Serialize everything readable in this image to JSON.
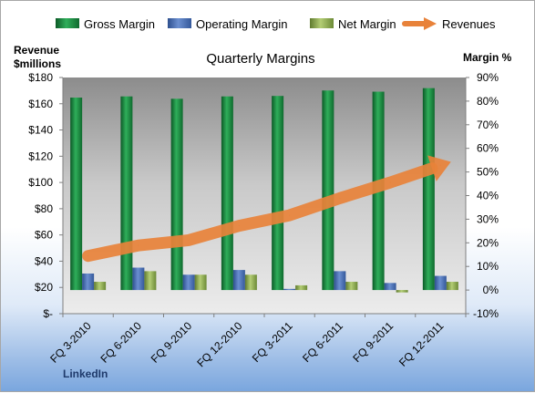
{
  "chart_data": {
    "type": "bar",
    "title": "Quarterly Margins",
    "left_axis_title": [
      "Revenue",
      "$millions"
    ],
    "right_axis_title": "Margin %",
    "watermark": "LinkedIn",
    "categories": [
      "FQ 3-2010",
      "FQ 6-2010",
      "FQ 9-2010",
      "FQ 12-2010",
      "FQ 3-2011",
      "FQ 6-2011",
      "FQ 9-2011",
      "FQ 12-2011"
    ],
    "left_ticks": [
      "$-",
      "$20",
      "$40",
      "$60",
      "$80",
      "$100",
      "$120",
      "$140",
      "$160",
      "$180"
    ],
    "right_ticks": [
      "-10%",
      "0%",
      "10%",
      "20%",
      "30%",
      "40%",
      "50%",
      "60%",
      "70%",
      "80%",
      "90%"
    ],
    "ylim_left": [
      0,
      180
    ],
    "ylim_right": [
      -10,
      90
    ],
    "legend_position": "top",
    "grid": false,
    "series": [
      {
        "name": "Gross Margin",
        "type": "bar",
        "axis": "right",
        "color": "#1e8a45",
        "values": [
          81.5,
          82,
          81,
          82,
          82.2,
          84.5,
          84,
          85.5
        ]
      },
      {
        "name": "Operating Margin",
        "type": "bar",
        "axis": "right",
        "color": "#4a6fb5",
        "values": [
          7,
          9.5,
          6.5,
          8.5,
          0.5,
          8,
          3,
          6
        ]
      },
      {
        "name": "Net Margin",
        "type": "bar",
        "axis": "right",
        "color": "#8fae4e",
        "values": [
          3.5,
          8,
          6.5,
          6.5,
          2,
          3.5,
          -1,
          3.5
        ]
      },
      {
        "name": "Revenues",
        "type": "line",
        "axis": "left",
        "color": "#e8823a",
        "values": [
          44,
          52,
          56,
          67,
          75,
          88,
          100,
          113
        ]
      }
    ]
  }
}
